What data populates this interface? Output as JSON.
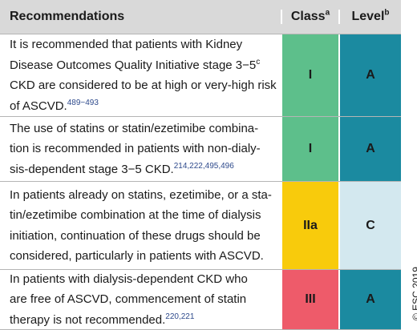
{
  "header": {
    "recommendations": "Recommendations",
    "class": "Class",
    "class_note": "a",
    "level": "Level",
    "level_note": "b"
  },
  "rows": [
    {
      "lines": [
        [
          {
            "text": "It is recommended that patients with Kidney"
          }
        ],
        [
          {
            "text": "Disease Outcomes Quality Initiative stage 3−5"
          },
          {
            "text": "c",
            "sup": true
          }
        ],
        [
          {
            "text": "CKD are considered to be at high or very-high risk"
          }
        ],
        [
          {
            "text": "of ASCVD."
          },
          {
            "text": "489−493",
            "ref": true
          }
        ]
      ],
      "class": "I",
      "class_color": "#5dbf8b",
      "level": "A",
      "level_color": "#1b8aa0"
    },
    {
      "lines": [
        [
          {
            "text": "The use of statins or statin/ezetimibe combina-"
          }
        ],
        [
          {
            "text": "tion is recommended in patients with non-dialy-"
          }
        ],
        [
          {
            "text": "sis-dependent stage 3−5 CKD."
          },
          {
            "text": "214,222,495,496",
            "ref": true
          }
        ]
      ],
      "class": "I",
      "class_color": "#5dbf8b",
      "level": "A",
      "level_color": "#1b8aa0"
    },
    {
      "lines": [
        [
          {
            "text": "In patients already on statins, ezetimibe, or a sta-"
          }
        ],
        [
          {
            "text": "tin/ezetimibe combination at the time of dialysis"
          }
        ],
        [
          {
            "text": "initiation, continuation of these drugs should be"
          }
        ],
        [
          {
            "text": "considered, particularly in patients with ASCVD."
          }
        ]
      ],
      "class": "IIa",
      "class_color": "#f8cb0c",
      "level": "C",
      "level_color": "#d3e8ef"
    },
    {
      "lines": [
        [
          {
            "text": "In patients with dialysis-dependent CKD who"
          }
        ],
        [
          {
            "text": "are free of ASCVD, commencement of statin"
          }
        ],
        [
          {
            "text": "therapy is not recommended."
          },
          {
            "text": "220,221",
            "ref": true
          }
        ]
      ],
      "class": "III",
      "class_color": "#ee5b6a",
      "level": "A",
      "level_color": "#1b8aa0"
    }
  ],
  "copyright": "© ESC 2019"
}
